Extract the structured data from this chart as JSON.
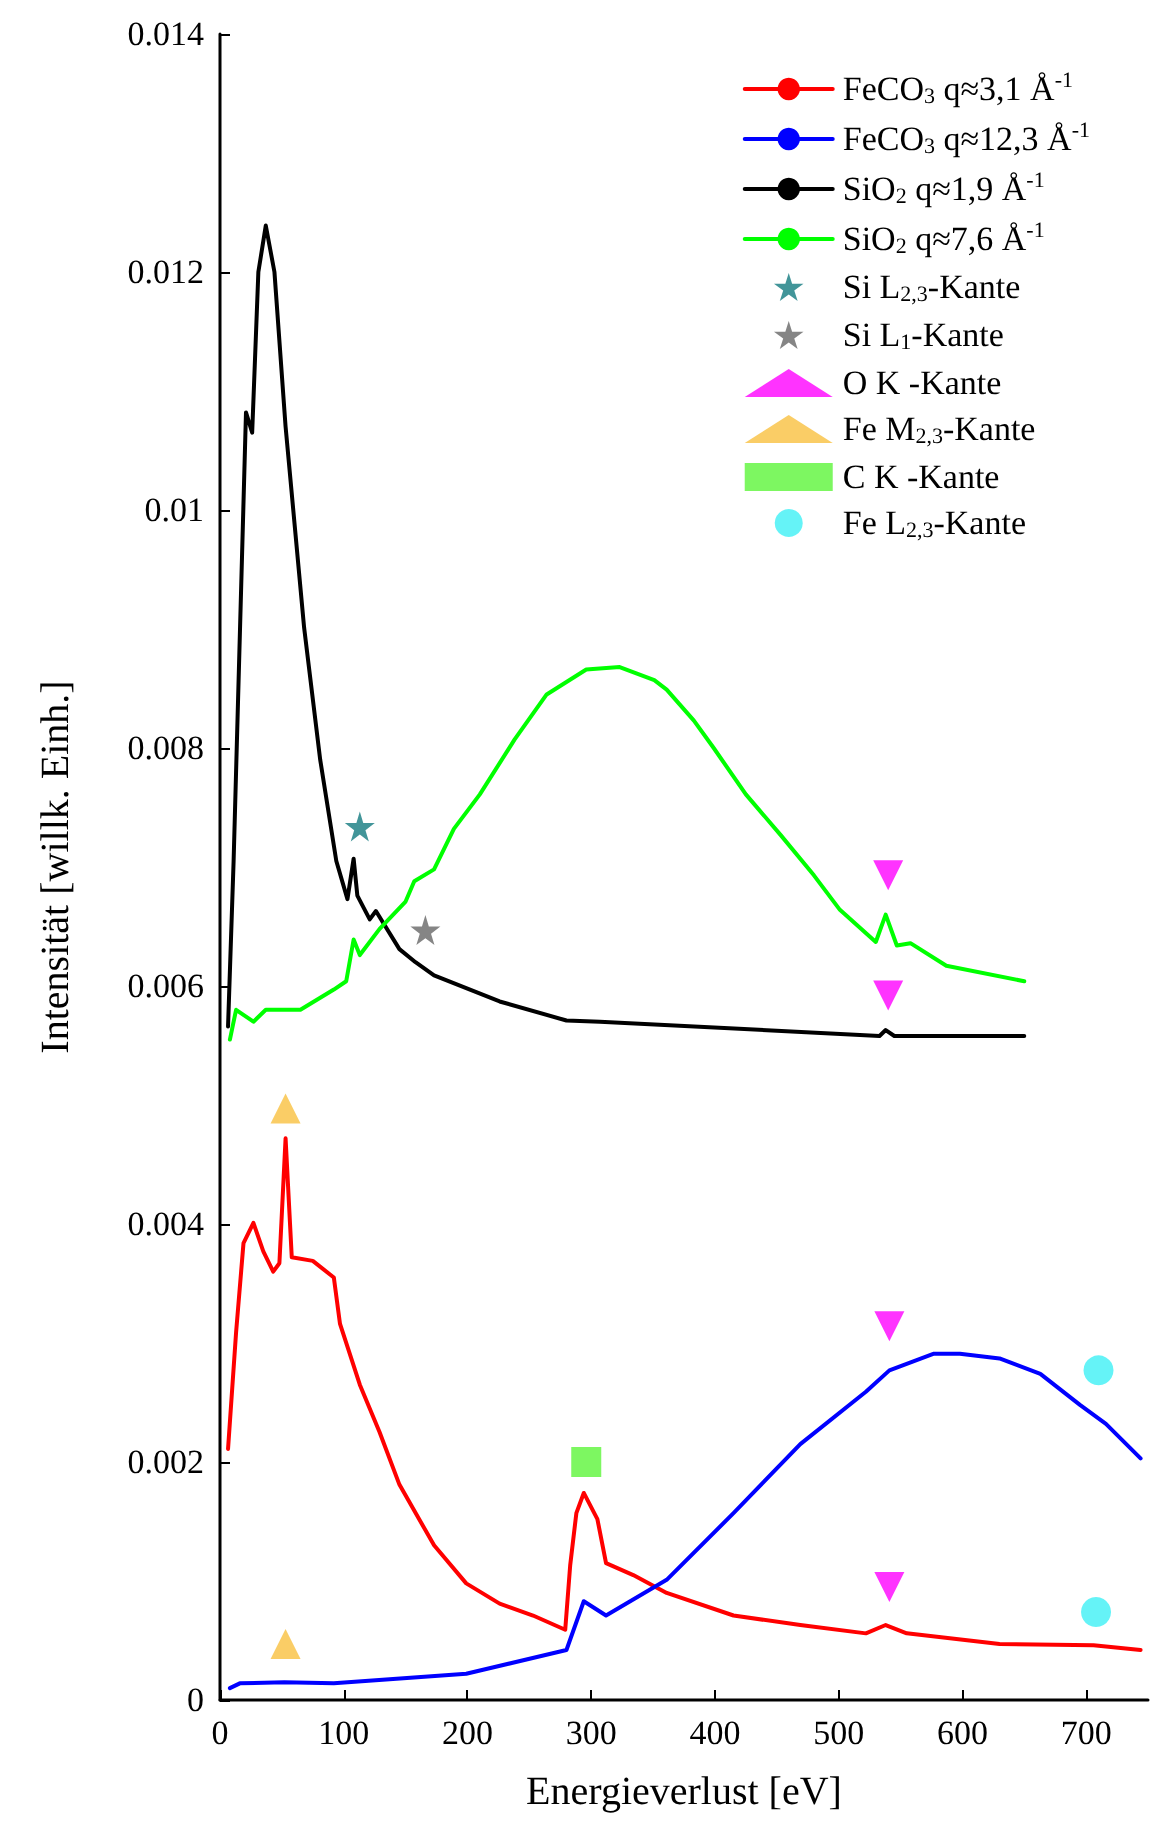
{
  "chart_data": {
    "type": "line",
    "xlabel": "Energieverlust [eV]",
    "ylabel": "Intensität [willk. Einh.]",
    "xlim": [
      0,
      750
    ],
    "ylim": [
      0,
      0.014
    ],
    "xticks": [
      0,
      100,
      200,
      300,
      400,
      500,
      600,
      700
    ],
    "yticks": [
      0,
      0.002,
      0.004,
      0.006,
      0.008,
      0.01,
      0.012,
      0.014
    ],
    "grid": false,
    "legend": "top right",
    "line_style": "solid",
    "marker": "none",
    "series": [
      {
        "name": "FeCO$_{3}$ q≈3,1 Å$^{-1}$",
        "color": "#ff0000",
        "x": [
          6.5,
          13,
          19,
          27,
          35,
          43,
          48,
          53,
          58,
          75,
          92,
          97,
          113,
          129,
          145,
          173,
          199,
          226,
          253,
          279,
          283,
          288,
          294,
          305,
          312,
          334,
          361,
          415,
          469,
          522,
          538,
          555,
          630,
          706,
          744
        ],
        "values": [
          0.00211,
          0.00309,
          0.00384,
          0.00401,
          0.00377,
          0.0036,
          0.00367,
          0.00472,
          0.00372,
          0.00369,
          0.00355,
          0.00316,
          0.00265,
          0.00225,
          0.00181,
          0.0013,
          0.00098,
          0.00081,
          0.00071,
          0.00059,
          0.00113,
          0.00157,
          0.00174,
          0.00152,
          0.00115,
          0.00105,
          0.0009,
          0.00071,
          0.00063,
          0.00056,
          0.00063,
          0.00056,
          0.00047,
          0.00046,
          0.00042
        ]
      },
      {
        "name": "FeCO$_{3}$ q≈12,3 Å$^{-1}$",
        "color": "#0000ff",
        "x": [
          8,
          16,
          52,
          92,
          199,
          280,
          294,
          312,
          361,
          415,
          469,
          522,
          541,
          577,
          598,
          630,
          663,
          695,
          716,
          744
        ],
        "values": [
          0.0001,
          0.00014,
          0.00015,
          0.00014,
          0.00022,
          0.00042,
          0.00083,
          0.00071,
          0.00101,
          0.00157,
          0.00215,
          0.00259,
          0.00277,
          0.00291,
          0.00291,
          0.00287,
          0.00274,
          0.00248,
          0.00232,
          0.00203
        ]
      },
      {
        "name": "SiO$_{2}$ q≈1,9 Å$^{-1}$",
        "color": "#000000",
        "x": [
          6.5,
          11,
          21,
          26,
          31,
          37,
          44,
          53,
          68,
          81,
          94,
          103,
          108,
          111,
          121,
          126,
          145,
          158,
          173,
          226,
          280,
          307,
          533,
          538,
          545,
          650
        ],
        "values": [
          0.00566,
          0.00705,
          0.01082,
          0.01065,
          0.012,
          0.01239,
          0.012,
          0.0107,
          0.00901,
          0.0079,
          0.00705,
          0.00673,
          0.00707,
          0.00676,
          0.00656,
          0.00663,
          0.00631,
          0.0062,
          0.00609,
          0.00587,
          0.00571,
          0.0057,
          0.00558,
          0.00563,
          0.00558,
          0.00558
        ]
      },
      {
        "name": "SiO$_{2}$ q≈7,6 Å$^{-1}$",
        "color": "#00ff00",
        "x": [
          8,
          13,
          27,
          37,
          65,
          92,
          102,
          108,
          113,
          129,
          150,
          157,
          173,
          189,
          210,
          238,
          264,
          296,
          323,
          351,
          361,
          383,
          399,
          425,
          453,
          480,
          501,
          530,
          538,
          547,
          558,
          587,
          650
        ],
        "values": [
          0.00555,
          0.0058,
          0.0057,
          0.0058,
          0.0058,
          0.00597,
          0.00604,
          0.00639,
          0.00626,
          0.00648,
          0.00671,
          0.00688,
          0.00698,
          0.00732,
          0.00761,
          0.00807,
          0.00845,
          0.00866,
          0.00868,
          0.00857,
          0.00849,
          0.00823,
          0.008,
          0.00761,
          0.00727,
          0.00693,
          0.00664,
          0.00637,
          0.0066,
          0.00634,
          0.00636,
          0.00617,
          0.00604
        ]
      },
      {
        "name": "Si L$_{2,3}$-Kante",
        "type": "scatter",
        "marker": "star",
        "color": "#137a7f",
        "x": [
          113
        ],
        "values": [
          0.00734
        ]
      },
      {
        "name": "Si L$_{1}$-Kante",
        "type": "scatter",
        "marker": "star",
        "color": "#666666",
        "x": [
          166
        ],
        "values": [
          0.00647
        ]
      },
      {
        "name": "O K -Kante",
        "type": "scatter",
        "marker": "triangle_down",
        "color": "#ff00ff",
        "x": [
          540,
          540,
          541,
          541
        ],
        "values": [
          0.00693,
          0.00592,
          0.00314,
          0.00095
        ]
      },
      {
        "name": "Fe M$_{2,3}$-Kante",
        "type": "scatter",
        "marker": "triangle",
        "color": "#f9c040",
        "x": [
          53,
          53
        ],
        "values": [
          0.00497,
          0.00047
        ]
      },
      {
        "name": "C K -Kante",
        "type": "scatter",
        "marker": "square",
        "color": "#5cf53a",
        "x": [
          296
        ],
        "values": [
          0.002
        ]
      },
      {
        "name": "Fe L$_{2,3}$-Kante",
        "type": "scatter",
        "marker": "circle",
        "color": "#3ff0f5",
        "x": [
          710,
          708
        ],
        "values": [
          0.00277,
          0.00074
        ]
      }
    ]
  }
}
